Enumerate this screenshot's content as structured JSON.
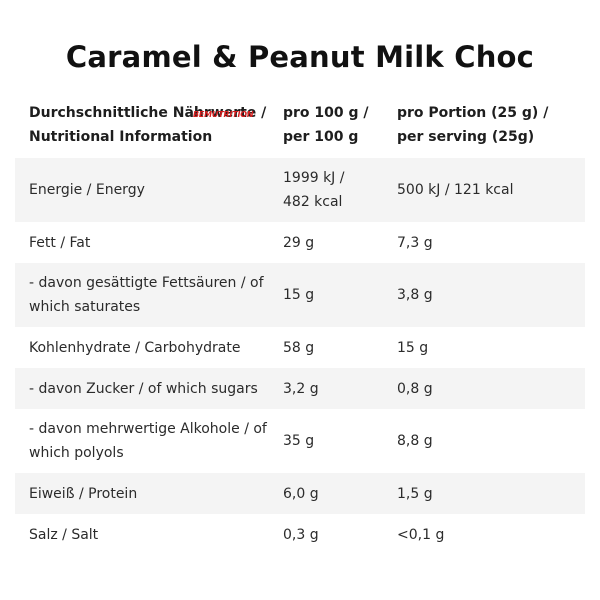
{
  "title": "Caramel & Peanut Milk Choc",
  "logo_text": "BEMUTRITION",
  "header": {
    "col1_line1": "Durchschnittliche Nährwerte /",
    "col1_line2": "Nutritional Information",
    "col2_line1": "pro 100 g /",
    "col2_line2": "per 100 g",
    "col3_line1": "pro Portion (25 g) /",
    "col3_line2": "per serving (25g)"
  },
  "rows": [
    {
      "label_l1": "Energie / Energy",
      "label_l2": "",
      "v100_l1": "1999 kJ /",
      "v100_l2": "482 kcal",
      "serving": "500 kJ / 121 kcal"
    },
    {
      "label_l1": "Fett / Fat",
      "label_l2": "",
      "v100_l1": "29 g",
      "v100_l2": "",
      "serving": "7,3 g"
    },
    {
      "label_l1": "- davon gesättigte Fettsäuren / of",
      "label_l2": "which saturates",
      "v100_l1": "15 g",
      "v100_l2": "",
      "serving": "3,8 g"
    },
    {
      "label_l1": "Kohlenhydrate / Carbohydrate",
      "label_l2": "",
      "v100_l1": "58 g",
      "v100_l2": "",
      "serving": "15 g"
    },
    {
      "label_l1": "- davon Zucker / of which sugars",
      "label_l2": "",
      "v100_l1": "3,2 g",
      "v100_l2": "",
      "serving": "0,8 g"
    },
    {
      "label_l1": "- davon mehrwertige Alkohole / of",
      "label_l2": "which polyols",
      "v100_l1": "35 g",
      "v100_l2": "",
      "serving": "8,8 g"
    },
    {
      "label_l1": "Eiweiß / Protein",
      "label_l2": "",
      "v100_l1": "6,0 g",
      "v100_l2": "",
      "serving": "1,5 g"
    },
    {
      "label_l1": "Salz / Salt",
      "label_l2": "",
      "v100_l1": "0,3 g",
      "v100_l2": "",
      "serving": "<0,1 g"
    }
  ]
}
